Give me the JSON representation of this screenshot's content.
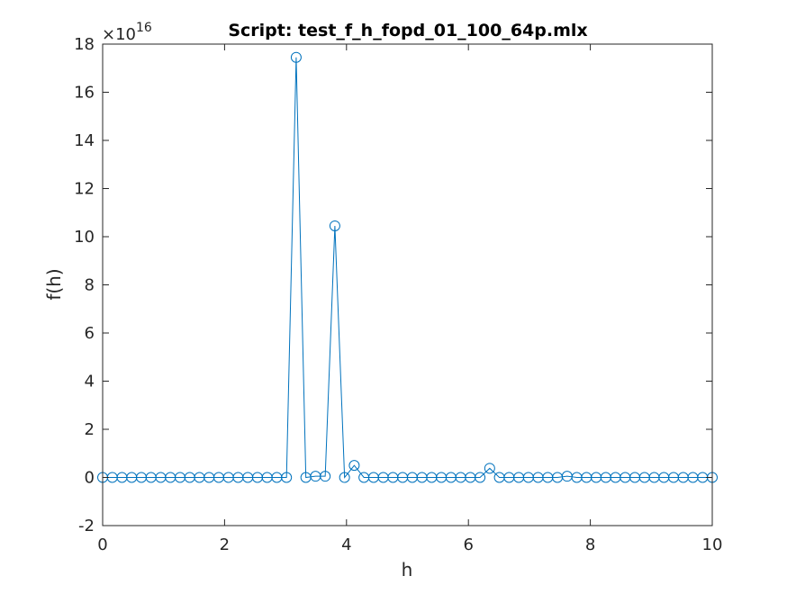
{
  "chart_data": {
    "type": "line",
    "title": "Script: test_f_h_fopd_01_100_64p.mlx",
    "xlabel": "h",
    "ylabel": "f(h)",
    "y_exponent_label": "×10",
    "y_exponent_power": "16",
    "xlim": [
      0,
      10
    ],
    "ylim": [
      -2,
      18
    ],
    "x_ticks": [
      "0",
      "2",
      "4",
      "6",
      "8",
      "10"
    ],
    "y_ticks": [
      "-2",
      "0",
      "2",
      "4",
      "6",
      "8",
      "10",
      "12",
      "14",
      "16",
      "18"
    ],
    "grid": false,
    "line_color": "#0072BD",
    "marker": "circle",
    "series": [
      {
        "x": [
          0.0,
          0.1587,
          0.3175,
          0.4762,
          0.6349,
          0.7937,
          0.9524,
          1.1111,
          1.2698,
          1.4286,
          1.5873,
          1.746,
          1.9048,
          2.0635,
          2.2222,
          2.381,
          2.5397,
          2.6984,
          2.8571,
          3.0159,
          3.1746,
          3.3333,
          3.4921,
          3.6508,
          3.8095,
          3.9683,
          4.127,
          4.2857,
          4.4444,
          4.6032,
          4.7619,
          4.9206,
          5.0794,
          5.2381,
          5.3968,
          5.5556,
          5.7143,
          5.873,
          6.0317,
          6.1905,
          6.3492,
          6.5079,
          6.6667,
          6.8254,
          6.9841,
          7.1429,
          7.3016,
          7.4603,
          7.619,
          7.7778,
          7.9365,
          8.0952,
          8.254,
          8.4127,
          8.5714,
          8.7302,
          8.8889,
          9.0476,
          9.2063,
          9.3651,
          9.5238,
          9.6825,
          9.8413,
          10.0
        ],
        "values": [
          0,
          0,
          0,
          0,
          0,
          0,
          0,
          0,
          0,
          0,
          0,
          0,
          0,
          0,
          0,
          0,
          0,
          0,
          0,
          0,
          17.45,
          0,
          0.05,
          0.05,
          10.45,
          0,
          0.5,
          0,
          0,
          0,
          0,
          0,
          0,
          0,
          0,
          0,
          0,
          0,
          0,
          0,
          0.38,
          0,
          0,
          0,
          0,
          0,
          0,
          0,
          0.05,
          0,
          0,
          0,
          0,
          0,
          0,
          0,
          0,
          0,
          0,
          0,
          0,
          0,
          0,
          0
        ]
      }
    ]
  }
}
